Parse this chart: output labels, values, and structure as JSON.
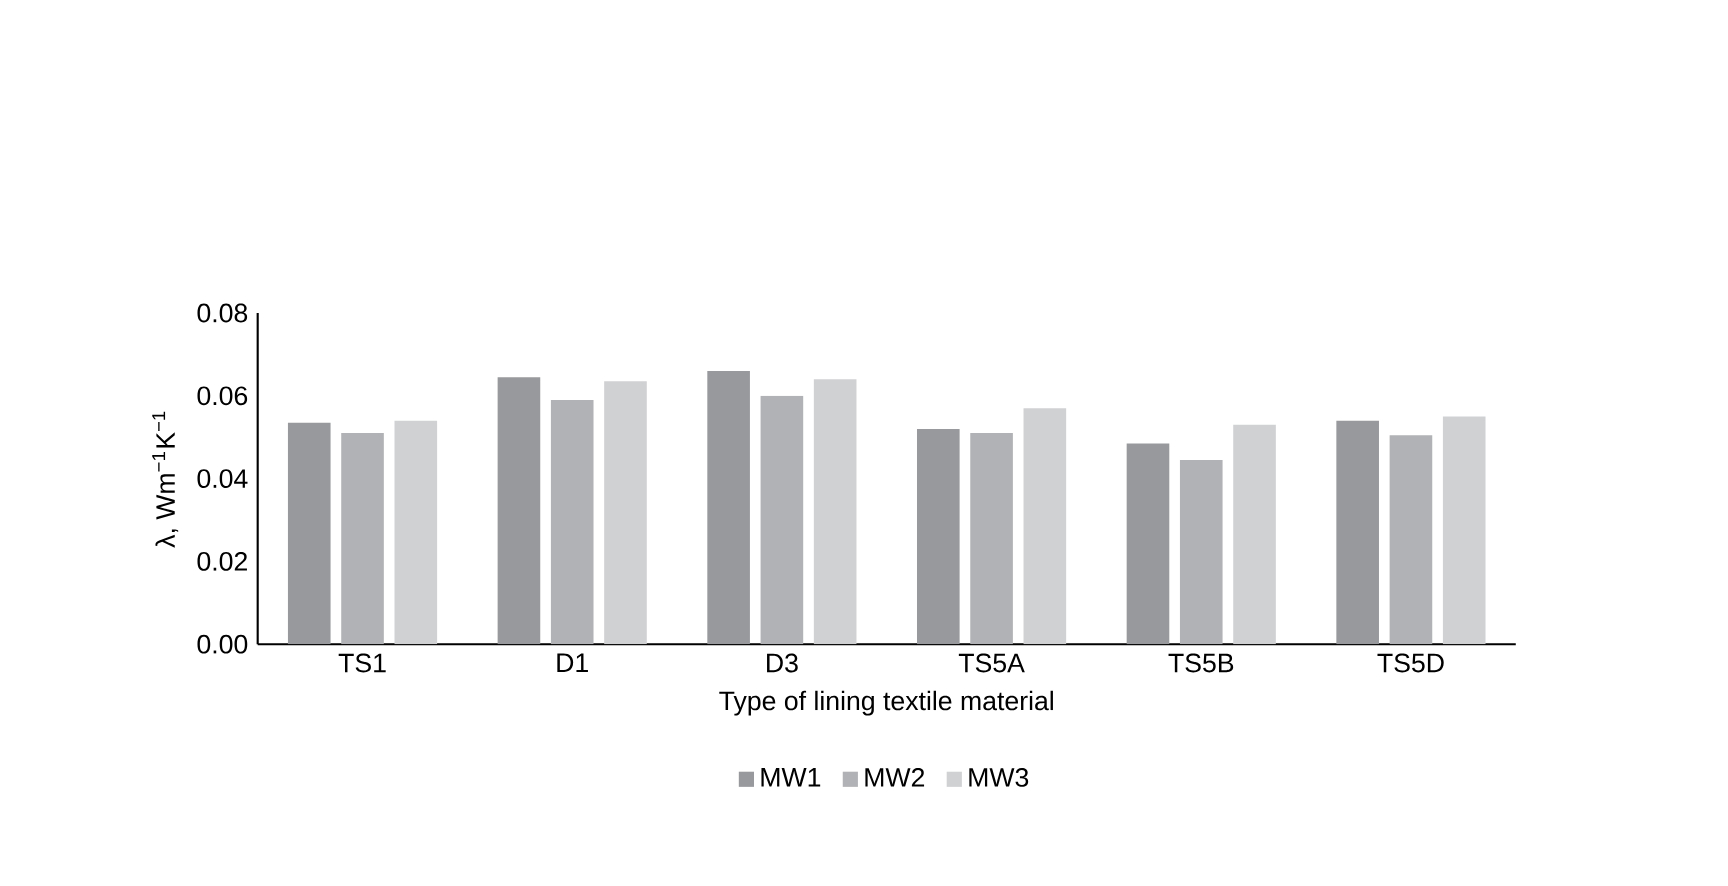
{
  "chart_data": {
    "type": "bar",
    "xlabel": "Type of lining textile material",
    "ylabel": "λ, Wm$^{−1}$K$^{−1}$",
    "categories": [
      "TS1",
      "D1",
      "D3",
      "TS5A",
      "TS5B",
      "TS5D"
    ],
    "series": [
      {
        "name": "MW1",
        "color": "#98999c",
        "values": [
          0.0535,
          0.0645,
          0.066,
          0.052,
          0.0485,
          0.054
        ]
      },
      {
        "name": "MW2",
        "color": "#b1b2b5",
        "values": [
          0.051,
          0.059,
          0.06,
          0.051,
          0.0445,
          0.0505
        ]
      },
      {
        "name": "MW3",
        "color": "#d0d1d3",
        "values": [
          0.054,
          0.0635,
          0.064,
          0.057,
          0.053,
          0.055
        ]
      }
    ],
    "ylim": [
      0,
      0.08
    ],
    "yticks": [
      {
        "value": 0,
        "label": "0.00"
      },
      {
        "value": 0.02,
        "label": "0.02"
      },
      {
        "value": 0.04,
        "label": "0.04"
      },
      {
        "value": 0.06,
        "label": "0.06"
      },
      {
        "value": 0.08,
        "label": "0.08"
      }
    ],
    "legend": "bottom",
    "grid": false
  }
}
